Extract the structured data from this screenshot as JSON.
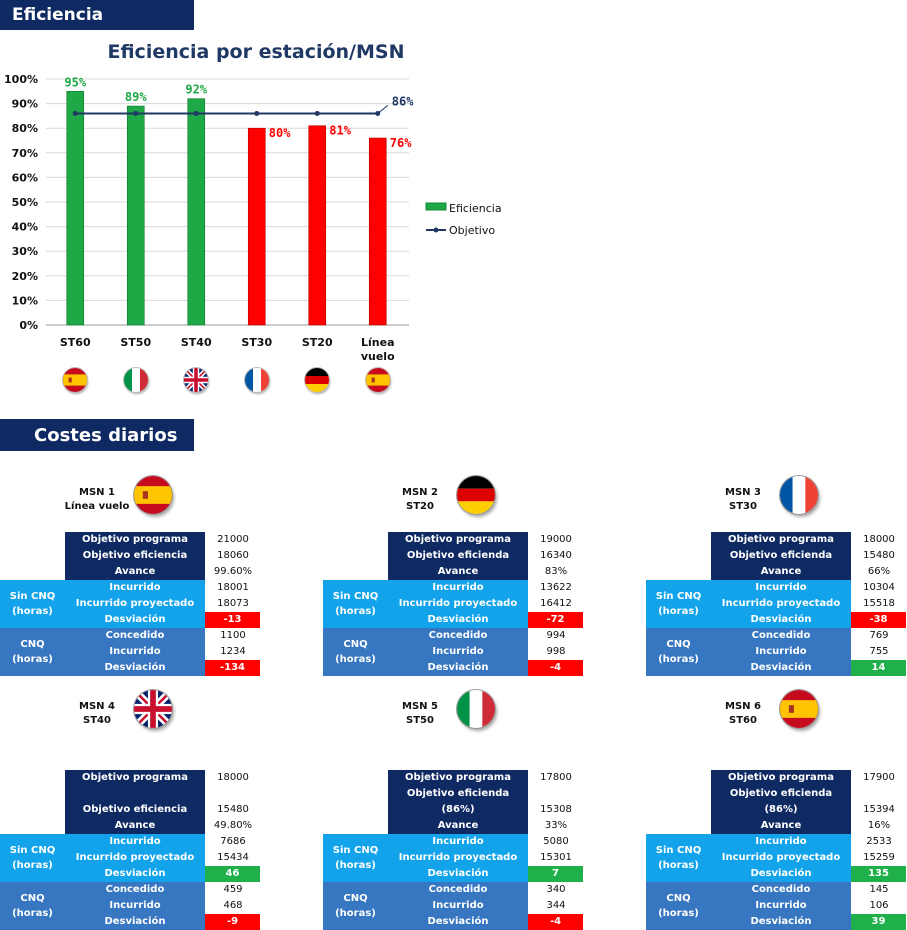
{
  "sections": {
    "efficiency": "Eficiencia",
    "costs": "Costes diarios"
  },
  "chart_data": {
    "type": "bar",
    "title": "Eficiencia por estación/MSN",
    "categories": [
      "ST60",
      "ST50",
      "ST40",
      "ST30",
      "ST20",
      "Línea vuelo"
    ],
    "series": [
      {
        "name": "Eficiencia",
        "values": [
          95,
          89,
          92,
          80,
          81,
          76
        ]
      },
      {
        "name": "Objetivo",
        "values": [
          86,
          86,
          86,
          86,
          86,
          86
        ]
      }
    ],
    "data_labels": [
      "95%",
      "89%",
      "92%",
      "80%",
      "81%",
      "76%"
    ],
    "objective_label": "86%",
    "ylim": [
      0,
      100
    ],
    "yticks": [
      "0%",
      "10%",
      "20%",
      "30%",
      "40%",
      "50%",
      "60%",
      "70%",
      "80%",
      "90%",
      "100%"
    ],
    "colors": {
      "good": "#1fa846",
      "bad": "#ff0000",
      "objective": "#1f3864"
    },
    "flags": [
      "flag-spain-icon",
      "flag-italy-icon",
      "flag-uk-icon",
      "flag-france-icon",
      "flag-germany-icon",
      "flag-spain-icon"
    ],
    "legend_position": "right"
  },
  "msn": [
    {
      "title": "MSN 1",
      "station": "Línea vuelo",
      "flag": "flag-spain-icon",
      "objetivo_programa_label": "Objetivo programa",
      "objetivo_programa": "21000",
      "objetivo_eficiencia_label": "Objetivo eficiencia (86%)",
      "objetivo_eficiencia": "18060",
      "avance_label": "Avance",
      "avance": "99.60%",
      "sin_cnq_label": "Sin CNQ (horas)",
      "incurrido_label": "Incurrido",
      "incurrido": "18001",
      "proyectado_label": "Incurrido proyectado",
      "proyectado": "18073",
      "desviacion_label": "Desviación",
      "desviacion": "-13",
      "desviacion_status": "negative",
      "cnq_label": "CNQ (horas)",
      "concedido_label": "Concedido",
      "concedido": "1100",
      "cnq_incurrido_label": "Incurrido",
      "cnq_incurrido": "1234",
      "cnq_desviacion_label": "Desviación",
      "cnq_desviacion": "-134",
      "cnq_desviacion_status": "negative"
    },
    {
      "title": "MSN 2",
      "station": "ST20",
      "flag": "flag-germany-icon",
      "objetivo_programa_label": "Objetivo programa",
      "objetivo_programa": "19000",
      "objetivo_eficiencia_label": "Objetivo eficienda",
      "objetivo_eficiencia": "16340",
      "avance_label": "Avance",
      "avance": "83%",
      "sin_cnq_label": "Sin CNQ (horas)",
      "incurrido_label": "Incurrido",
      "incurrido": "13622",
      "proyectado_label": "Incurrido proyectado",
      "proyectado": "16412",
      "desviacion_label": "Desviación",
      "desviacion": "-72",
      "desviacion_status": "negative",
      "cnq_label": "CNQ (horas)",
      "concedido_label": "Concedido",
      "concedido": "994",
      "cnq_incurrido_label": "Incurrido",
      "cnq_incurrido": "998",
      "cnq_desviacion_label": "Desviación",
      "cnq_desviacion": "-4",
      "cnq_desviacion_status": "negative"
    },
    {
      "title": "MSN 3",
      "station": "ST30",
      "flag": "flag-france-icon",
      "objetivo_programa_label": "Objetivo programa",
      "objetivo_programa": "18000",
      "objetivo_eficiencia_label": "Objetivo eficienda",
      "objetivo_eficiencia": "15480",
      "avance_label": "Avance",
      "avance": "66%",
      "sin_cnq_label": "Sin CNQ (horas)",
      "incurrido_label": "Incurrido",
      "incurrido": "10304",
      "proyectado_label": "Incurrido proyectado",
      "proyectado": "15518",
      "desviacion_label": "Desviación",
      "desviacion": "-38",
      "desviacion_status": "negative",
      "cnq_label": "CNQ (horas)",
      "concedido_label": "Concedido",
      "concedido": "769",
      "cnq_incurrido_label": "Incurrido",
      "cnq_incurrido": "755",
      "cnq_desviacion_label": "Desviación",
      "cnq_desviacion": "14",
      "cnq_desviacion_status": "positive"
    },
    {
      "title": "MSN 4",
      "station": "ST40",
      "flag": "flag-uk-icon",
      "objetivo_programa_label": "Objetivo programa",
      "objetivo_programa": "18000",
      "objetivo_eficiencia_label": "Objetivo eficiencia (86%)",
      "objetivo_eficiencia": "15480",
      "avance_label": "Avance",
      "avance": "49.80%",
      "sin_cnq_label": "Sin CNQ (horas)",
      "incurrido_label": "Incurrido",
      "incurrido": "7686",
      "proyectado_label": "Incurrido proyectado",
      "proyectado": "15434",
      "desviacion_label": "Desviación",
      "desviacion": "46",
      "desviacion_status": "positive",
      "cnq_label": "CNQ (horas)",
      "concedido_label": "Concedido",
      "concedido": "459",
      "cnq_incurrido_label": "Incurrido",
      "cnq_incurrido": "468",
      "cnq_desviacion_label": "Desviación",
      "cnq_desviacion": "-9",
      "cnq_desviacion_status": "negative"
    },
    {
      "title": "MSN 5",
      "station": "ST50",
      "flag": "flag-italy-icon",
      "objetivo_programa_label": "Objetivo programa",
      "objetivo_programa": "17800",
      "objetivo_eficiencia_label": "Objetivo eficienda",
      "objetivo_eficiencia_sub": "(86%)",
      "objetivo_eficiencia": "15308",
      "avance_label": "Avance",
      "avance": "33%",
      "sin_cnq_label": "Sin CNQ (horas)",
      "incurrido_label": "Incurrido",
      "incurrido": "5080",
      "proyectado_label": "Incurrido proyectado",
      "proyectado": "15301",
      "desviacion_label": "Desviación",
      "desviacion": "7",
      "desviacion_status": "positive",
      "cnq_label": "CNQ (horas)",
      "concedido_label": "Concedido",
      "concedido": "340",
      "cnq_incurrido_label": "Incurrido",
      "cnq_incurrido": "344",
      "cnq_desviacion_label": "Desviación",
      "cnq_desviacion": "-4",
      "cnq_desviacion_status": "negative"
    },
    {
      "title": "MSN 6",
      "station": "ST60",
      "flag": "flag-spain-icon",
      "objetivo_programa_label": "Objetivo programa",
      "objetivo_programa": "17900",
      "objetivo_eficiencia_label": "Objetivo eficienda",
      "objetivo_eficiencia_sub": "(86%)",
      "objetivo_eficiencia": "15394",
      "avance_label": "Avance",
      "avance": "16%",
      "sin_cnq_label": "Sin CNQ (horas)",
      "incurrido_label": "Incurrido",
      "incurrido": "2533",
      "proyectado_label": "Incurrido proyectado",
      "proyectado": "15259",
      "desviacion_label": "Desviación",
      "desviacion": "135",
      "desviacion_status": "positive",
      "cnq_label": "CNQ (horas)",
      "concedido_label": "Concedido",
      "concedido": "145",
      "cnq_incurrido_label": "Incurrido",
      "cnq_incurrido": "106",
      "cnq_desviacion_label": "Desviación",
      "cnq_desviacion": "39",
      "cnq_desviacion_status": "positive"
    }
  ]
}
